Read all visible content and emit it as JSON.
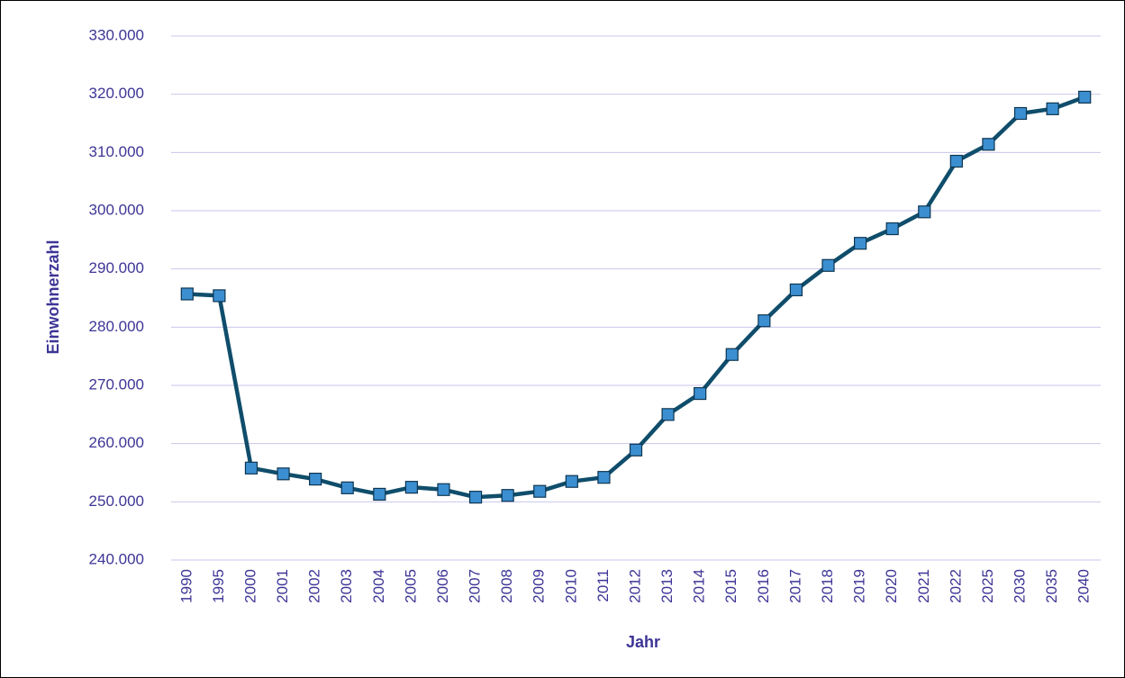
{
  "chart_data": {
    "type": "line",
    "xlabel": "Jahr",
    "ylabel": "Einwohnerzahl",
    "categories": [
      "1990",
      "1995",
      "2000",
      "2001",
      "2002",
      "2003",
      "2004",
      "2005",
      "2006",
      "2007",
      "2008",
      "2009",
      "2010",
      "2011",
      "2012",
      "2013",
      "2014",
      "2015",
      "2016",
      "2017",
      "2018",
      "2019",
      "2020",
      "2021",
      "2022",
      "2025",
      "2030",
      "2035",
      "2040"
    ],
    "values": [
      285700,
      285400,
      255800,
      254800,
      253900,
      252400,
      251300,
      252500,
      252100,
      250800,
      251100,
      251800,
      253500,
      254200,
      258900,
      265000,
      268600,
      275300,
      281100,
      286400,
      290600,
      294400,
      296900,
      299800,
      308500,
      311400,
      316700,
      317500,
      319500
    ],
    "color": "#0f4d6b",
    "marker_color": "#3b8fd1",
    "ylim": [
      240000,
      330000
    ],
    "yticks": [
      {
        "value": 240000,
        "label": "240.000"
      },
      {
        "value": 250000,
        "label": "250.000"
      },
      {
        "value": 260000,
        "label": "260.000"
      },
      {
        "value": 270000,
        "label": "270.000"
      },
      {
        "value": 280000,
        "label": "280.000"
      },
      {
        "value": 290000,
        "label": "290.000"
      },
      {
        "value": 300000,
        "label": "300.000"
      },
      {
        "value": 310000,
        "label": "310.000"
      },
      {
        "value": 320000,
        "label": "320.000"
      },
      {
        "value": 330000,
        "label": "330.000"
      }
    ],
    "grid": true
  }
}
